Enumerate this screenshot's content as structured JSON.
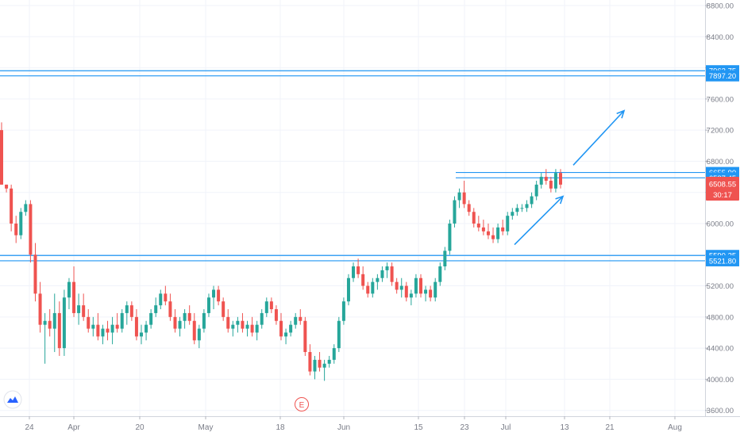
{
  "chart_data": {
    "type": "candlestick",
    "colors": {
      "up": "#26a69a",
      "down": "#ef5350",
      "line": "#2196f3",
      "price_tag": "#ef5350",
      "axis_text": "#787b86",
      "grid": "#f0f3fa"
    },
    "y_axis": {
      "ticks": [
        "8800.00",
        "8400.00",
        "8000.00",
        "7600.00",
        "7200.00",
        "6800.00",
        "6400.00",
        "6000.00",
        "5600.00",
        "5200.00",
        "4800.00",
        "4400.00",
        "4000.00",
        "3600.00"
      ],
      "range": [
        3500,
        9000
      ]
    },
    "x_axis": {
      "ticks": [
        "24",
        "Apr",
        "20",
        "May",
        "18",
        "Jun",
        "15",
        "23",
        "Jul",
        "13",
        "21",
        "Aug"
      ]
    },
    "horizontal_levels": [
      {
        "value": 7962.75,
        "label": "7962.75"
      },
      {
        "value": 7897.2,
        "label": "7897.20"
      },
      {
        "value": 6655.9,
        "label": "6655.90"
      },
      {
        "value": 6587.45,
        "label": "6587.45"
      },
      {
        "value": 5590.25,
        "label": "5590.25"
      },
      {
        "value": 5521.8,
        "label": "5521.80"
      }
    ],
    "last_price": {
      "value": 6508.55,
      "label": "6508.55",
      "countdown": "30:17"
    },
    "earnings_marker": "E",
    "candles": [
      [
        7200,
        7300,
        6500,
        6500
      ],
      [
        6500,
        6500,
        6400,
        6450
      ],
      [
        6450,
        6500,
        5900,
        6000
      ],
      [
        6000,
        6100,
        5750,
        5850
      ],
      [
        5850,
        6200,
        5800,
        6150
      ],
      [
        6150,
        6300,
        6100,
        6250
      ],
      [
        6250,
        6300,
        5500,
        5600
      ],
      [
        5600,
        5750,
        5000,
        5100
      ],
      [
        5100,
        5250,
        4600,
        4700
      ],
      [
        4700,
        4850,
        4200,
        4750
      ],
      [
        4750,
        4900,
        4550,
        4650
      ],
      [
        4650,
        5100,
        4350,
        4850
      ],
      [
        4850,
        5000,
        4300,
        4400
      ],
      [
        4400,
        5150,
        4300,
        5050
      ],
      [
        5050,
        5300,
        4900,
        5250
      ],
      [
        5250,
        5450,
        4800,
        4850
      ],
      [
        4850,
        5100,
        4700,
        4950
      ],
      [
        4950,
        5100,
        4750,
        4800
      ],
      [
        4800,
        4900,
        4600,
        4650
      ],
      [
        4650,
        4800,
        4550,
        4700
      ],
      [
        4700,
        4850,
        4500,
        4550
      ],
      [
        4550,
        4700,
        4450,
        4650
      ],
      [
        4650,
        4750,
        4500,
        4600
      ],
      [
        4600,
        4800,
        4450,
        4700
      ],
      [
        4700,
        4850,
        4600,
        4650
      ],
      [
        4650,
        4900,
        4600,
        4850
      ],
      [
        4850,
        5000,
        4700,
        4950
      ],
      [
        4950,
        5000,
        4750,
        4800
      ],
      [
        4800,
        4900,
        4500,
        4550
      ],
      [
        4550,
        4700,
        4450,
        4600
      ],
      [
        4600,
        4750,
        4500,
        4700
      ],
      [
        4700,
        4900,
        4650,
        4850
      ],
      [
        4850,
        5050,
        4800,
        4950
      ],
      [
        4950,
        5150,
        4900,
        5100
      ],
      [
        5100,
        5200,
        4950,
        5000
      ],
      [
        5000,
        5100,
        4750,
        4800
      ],
      [
        4800,
        4900,
        4600,
        4650
      ],
      [
        4650,
        4800,
        4550,
        4750
      ],
      [
        4750,
        4900,
        4650,
        4850
      ],
      [
        4850,
        4950,
        4700,
        4750
      ],
      [
        4750,
        4850,
        4450,
        4500
      ],
      [
        4500,
        4700,
        4400,
        4650
      ],
      [
        4650,
        4900,
        4600,
        4850
      ],
      [
        4850,
        5100,
        4800,
        5050
      ],
      [
        5050,
        5200,
        4900,
        5150
      ],
      [
        5150,
        5200,
        4950,
        5000
      ],
      [
        5000,
        5050,
        4750,
        4800
      ],
      [
        4800,
        4900,
        4600,
        4650
      ],
      [
        4650,
        4750,
        4550,
        4700
      ],
      [
        4700,
        4800,
        4600,
        4750
      ],
      [
        4750,
        4850,
        4600,
        4650
      ],
      [
        4650,
        4750,
        4550,
        4700
      ],
      [
        4700,
        4800,
        4550,
        4600
      ],
      [
        4600,
        4750,
        4500,
        4700
      ],
      [
        4700,
        4900,
        4650,
        4850
      ],
      [
        4850,
        5050,
        4800,
        5000
      ],
      [
        5000,
        5050,
        4850,
        4900
      ],
      [
        4900,
        4950,
        4700,
        4750
      ],
      [
        4750,
        4850,
        4500,
        4550
      ],
      [
        4550,
        4650,
        4450,
        4600
      ],
      [
        4600,
        4750,
        4550,
        4700
      ],
      [
        4700,
        4850,
        4650,
        4800
      ],
      [
        4800,
        4900,
        4700,
        4750
      ],
      [
        4750,
        4800,
        4300,
        4350
      ],
      [
        4350,
        4450,
        4050,
        4100
      ],
      [
        4100,
        4300,
        4000,
        4250
      ],
      [
        4250,
        4350,
        4100,
        4150
      ],
      [
        4150,
        4250,
        3980,
        4200
      ],
      [
        4200,
        4300,
        4150,
        4250
      ],
      [
        4250,
        4450,
        4200,
        4400
      ],
      [
        4400,
        4800,
        4350,
        4750
      ],
      [
        4750,
        5050,
        4700,
        5000
      ],
      [
        5000,
        5350,
        4950,
        5300
      ],
      [
        5300,
        5500,
        5250,
        5450
      ],
      [
        5450,
        5550,
        5300,
        5350
      ],
      [
        5350,
        5450,
        5150,
        5200
      ],
      [
        5200,
        5250,
        5050,
        5100
      ],
      [
        5100,
        5300,
        5050,
        5250
      ],
      [
        5250,
        5350,
        5150,
        5300
      ],
      [
        5300,
        5450,
        5250,
        5400
      ],
      [
        5400,
        5500,
        5300,
        5450
      ],
      [
        5450,
        5500,
        5200,
        5250
      ],
      [
        5250,
        5300,
        5100,
        5150
      ],
      [
        5150,
        5300,
        5050,
        5200
      ],
      [
        5200,
        5250,
        5000,
        5050
      ],
      [
        5050,
        5150,
        4950,
        5100
      ],
      [
        5100,
        5350,
        5050,
        5300
      ],
      [
        5300,
        5350,
        5050,
        5100
      ],
      [
        5100,
        5200,
        5000,
        5150
      ],
      [
        5150,
        5200,
        5000,
        5050
      ],
      [
        5050,
        5300,
        5000,
        5250
      ],
      [
        5250,
        5500,
        5200,
        5450
      ],
      [
        5450,
        5700,
        5400,
        5650
      ],
      [
        5650,
        6050,
        5600,
        6000
      ],
      [
        6000,
        6350,
        5950,
        6300
      ],
      [
        6300,
        6450,
        6200,
        6400
      ],
      [
        6400,
        6550,
        6200,
        6250
      ],
      [
        6250,
        6300,
        6100,
        6150
      ],
      [
        6150,
        6200,
        5950,
        6000
      ],
      [
        6000,
        6100,
        5900,
        5950
      ],
      [
        5950,
        6050,
        5850,
        5900
      ],
      [
        5900,
        6000,
        5800,
        5850
      ],
      [
        5850,
        5950,
        5750,
        5800
      ],
      [
        5800,
        6000,
        5750,
        5950
      ],
      [
        5950,
        6050,
        5850,
        5900
      ],
      [
        5900,
        6150,
        5850,
        6100
      ],
      [
        6100,
        6200,
        6050,
        6150
      ],
      [
        6150,
        6250,
        6100,
        6200
      ],
      [
        6200,
        6250,
        6150,
        6200
      ],
      [
        6200,
        6300,
        6150,
        6250
      ],
      [
        6250,
        6400,
        6200,
        6350
      ],
      [
        6350,
        6550,
        6300,
        6500
      ],
      [
        6500,
        6650,
        6450,
        6600
      ],
      [
        6600,
        6700,
        6500,
        6550
      ],
      [
        6550,
        6600,
        6400,
        6450
      ],
      [
        6450,
        6700,
        6400,
        6650
      ],
      [
        6650,
        6700,
        6450,
        6500
      ]
    ],
    "arrows": [
      {
        "from": [
          6,
          5730
        ],
        "to": [
          15,
          6350
        ]
      },
      {
        "from": [
          5,
          6750
        ],
        "to": [
          15,
          7450
        ]
      }
    ]
  }
}
